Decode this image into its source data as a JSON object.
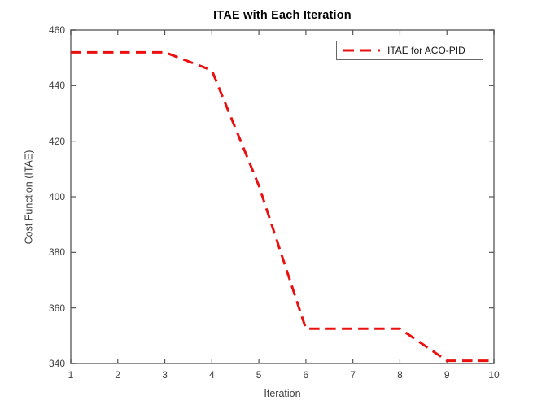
{
  "figure": {
    "background": "#ffffff"
  },
  "chart_data": {
    "type": "line",
    "title": "ITAE with Each Iteration",
    "xlabel": "Iteration",
    "ylabel": "Cost Function (ITAE)",
    "x": [
      1,
      2,
      3,
      4,
      5,
      6,
      7,
      8,
      9,
      10
    ],
    "series": [
      {
        "name": "ITAE for ACO-PID",
        "values": [
          452,
          452,
          452,
          445.5,
          404,
          352.5,
          352.5,
          352.5,
          341,
          341
        ],
        "color": "#ea1010",
        "line_style": "dashed",
        "line_width": 3
      }
    ],
    "xlim": [
      1,
      10
    ],
    "ylim": [
      340,
      460
    ],
    "x_ticks": [
      1,
      2,
      3,
      4,
      5,
      6,
      7,
      8,
      9,
      10
    ],
    "y_ticks": [
      340,
      360,
      380,
      400,
      420,
      440,
      460
    ],
    "grid": false,
    "box": true,
    "tick_direction": "in",
    "legend_position": "northeast",
    "axis_color": "#7d7d7d",
    "tick_color": "#555555",
    "tick_label_color": "#3e3e3e"
  }
}
